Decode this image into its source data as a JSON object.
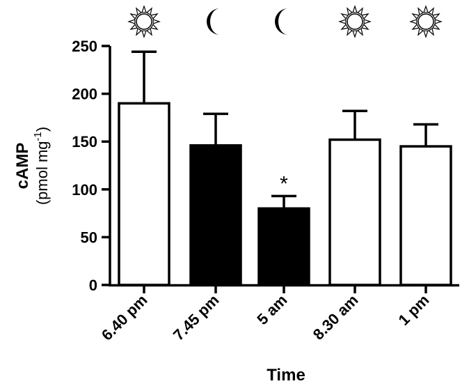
{
  "chart_data": {
    "type": "bar",
    "categories": [
      "6.40 pm",
      "7.45 pm",
      "5 am",
      "8.30 am",
      "1 pm"
    ],
    "values": [
      190,
      146,
      80,
      152,
      145
    ],
    "error_upper": [
      244,
      179,
      93,
      182,
      168
    ],
    "period_icons": [
      "sun-icon",
      "moon-icon",
      "moon-icon",
      "sun-icon",
      "sun-icon"
    ],
    "bar_fills": [
      "#ffffff",
      "#000000",
      "#000000",
      "#ffffff",
      "#ffffff"
    ],
    "annotations": [
      "",
      "",
      "*",
      "",
      ""
    ],
    "ylabel": "cAMP",
    "ylabel_unit_prefix": "(pmol mg",
    "ylabel_unit_sup": "-1",
    "ylabel_unit_suffix": ")",
    "xlabel": "Time",
    "yticks": [
      0,
      50,
      100,
      150,
      200,
      250
    ],
    "ylim": [
      0,
      250
    ],
    "grid": false
  }
}
